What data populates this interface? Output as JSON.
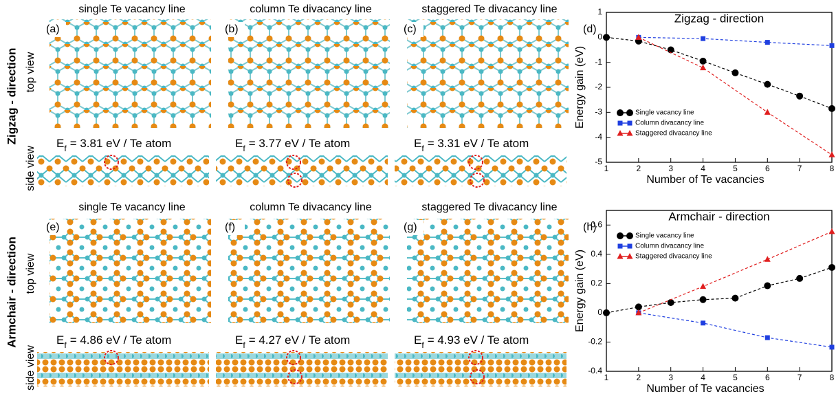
{
  "row_labels": [
    "Zigzag - direction",
    "Armchair - direction"
  ],
  "view_labels": {
    "top": "top view",
    "side": "side view"
  },
  "panels": [
    {
      "letter": "(a)",
      "title": "single Te vacancy line",
      "energy_symbol": "E",
      "energy_subscript": "f",
      "energy": "= 3.81 eV / Te atom"
    },
    {
      "letter": "(b)",
      "title": "column Te divacancy line",
      "energy_symbol": "E",
      "energy_subscript": "f",
      "energy": "= 3.77 eV / Te atom"
    },
    {
      "letter": "(c)",
      "title": "staggered Te divacancy line",
      "energy_symbol": "E",
      "energy_subscript": "f",
      "energy": "= 3.31 eV / Te atom"
    },
    {
      "letter": "(e)",
      "title": "single Te vacancy line",
      "energy_symbol": "E",
      "energy_subscript": "f",
      "energy": "= 4.86 eV / Te atom"
    },
    {
      "letter": "(f)",
      "title": "column Te divacancy line",
      "energy_symbol": "E",
      "energy_subscript": "f",
      "energy": "= 4.27 eV / Te atom"
    },
    {
      "letter": "(g)",
      "title": "staggered Te divacancy line",
      "energy_symbol": "E",
      "energy_subscript": "f",
      "energy": "= 4.93 eV / Te atom"
    }
  ],
  "chart_data": [
    {
      "type": "line",
      "letter": "(d)",
      "title": "Zigzag - direction",
      "x_label": "Number of Te vacancies",
      "y_label": "Energy gain (eV)",
      "xlim": [
        1,
        8
      ],
      "xticks": [
        1,
        2,
        3,
        4,
        5,
        6,
        7,
        8
      ],
      "ylim": [
        -5,
        1
      ],
      "yticks": [
        -5,
        -4,
        -3,
        -2,
        -1,
        0,
        1
      ],
      "legend": "center left",
      "series": [
        {
          "name": "Single vacancy line",
          "color": "#000000",
          "marker": "circle",
          "x": [
            1,
            2,
            3,
            4,
            5,
            6,
            7,
            8
          ],
          "values": [
            0,
            -0.15,
            -0.5,
            -0.95,
            -1.42,
            -1.88,
            -2.35,
            -2.85
          ]
        },
        {
          "name": "Column divacancy line",
          "color": "#1f3fe0",
          "marker": "square",
          "x": [
            2,
            4,
            6,
            8
          ],
          "values": [
            0,
            -0.05,
            -0.2,
            -0.33
          ]
        },
        {
          "name": "Staggered divacancy line",
          "color": "#e01f1f",
          "marker": "triangle",
          "x": [
            2,
            4,
            6,
            8
          ],
          "values": [
            0,
            -1.22,
            -3.0,
            -4.7
          ]
        }
      ]
    },
    {
      "type": "line",
      "letter": "(h)",
      "title": "Armchair - direction",
      "x_label": "Number of Te vacancies",
      "y_label": "Energy gain (eV)",
      "xlim": [
        1,
        8
      ],
      "xticks": [
        1,
        2,
        3,
        4,
        5,
        6,
        7,
        8
      ],
      "ylim": [
        -0.4,
        0.7
      ],
      "yticks": [
        -0.4,
        -0.2,
        0,
        0.2,
        0.4,
        0.6
      ],
      "legend": "upper left",
      "series": [
        {
          "name": "Single vacancy line",
          "color": "#000000",
          "marker": "circle",
          "x": [
            1,
            2,
            3,
            4,
            5,
            6,
            7,
            8
          ],
          "values": [
            0,
            0.04,
            0.07,
            0.09,
            0.1,
            0.185,
            0.235,
            0.31
          ]
        },
        {
          "name": "Column divacancy line",
          "color": "#1f3fe0",
          "marker": "square",
          "x": [
            2,
            4,
            6,
            8
          ],
          "values": [
            0,
            -0.07,
            -0.17,
            -0.235
          ]
        },
        {
          "name": "Staggered divacancy line",
          "color": "#e01f1f",
          "marker": "triangle",
          "x": [
            2,
            4,
            6,
            8
          ],
          "values": [
            0,
            0.18,
            0.365,
            0.555
          ]
        }
      ]
    }
  ]
}
